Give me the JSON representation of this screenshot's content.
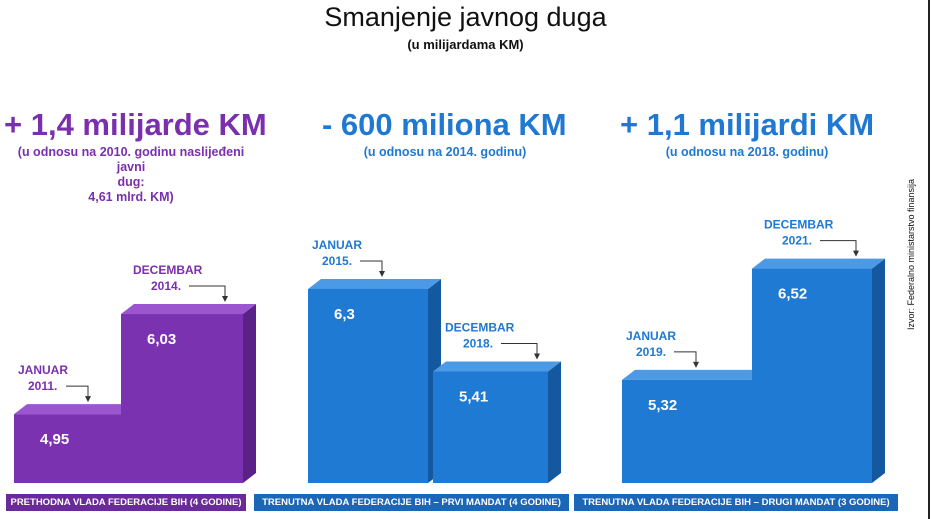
{
  "title": "Smanjenje javnog duga",
  "subtitle": "(u milijardama KM)",
  "source": "Izvor: Federalno ministarstvo finansija",
  "colors": {
    "purple": "#7a2fad",
    "blue": "#1f78d1"
  },
  "panels": [
    {
      "headline": "+ 1,4 milijarde KM",
      "note_lines": [
        "(u odnosu na 2010. godinu naslijeđeni javni",
        "dug:",
        "4,61 mlrd. KM)"
      ],
      "footer": "PRETHODNA VLADA FEDERACIJE BIH (4 GODINE)",
      "color": "purple"
    },
    {
      "headline": "- 600 miliona KM",
      "note_lines": [
        "(u odnosu na 2014. godinu)"
      ],
      "footer": "TRENUTNA VLADA FEDERACIJE BIH – PRVI MANDAT (4 GODINE)",
      "color": "blue"
    },
    {
      "headline": "+ 1,1 milijardi KM",
      "note_lines": [
        "(u odnosu na 2018. godinu)"
      ],
      "footer": "TRENUTNA VLADA FEDERACIJE BIH – DRUGI MANDAT (3 GODINE)",
      "color": "blue"
    }
  ],
  "chart_data": {
    "type": "bar",
    "title": "Smanjenje javnog duga",
    "ylabel": "(u milijardama KM)",
    "series": [
      {
        "name": "PRETHODNA VLADA FEDERACIJE BIH (4 GODINE)",
        "categories": [
          "JANUAR 2011.",
          "DECEMBAR 2014."
        ],
        "values": [
          4.95,
          6.03
        ],
        "labels": [
          "4,95",
          "6,03"
        ]
      },
      {
        "name": "TRENUTNA VLADA FEDERACIJE BIH – PRVI MANDAT (4 GODINE)",
        "categories": [
          "JANUAR 2015.",
          "DECEMBAR 2018."
        ],
        "values": [
          6.3,
          5.41
        ],
        "labels": [
          "6,3",
          "5,41"
        ]
      },
      {
        "name": "TRENUTNA VLADA FEDERACIJE BIH – DRUGI MANDAT (3 GODINE)",
        "categories": [
          "JANUAR 2019.",
          "DECEMBAR 2021."
        ],
        "values": [
          5.32,
          6.52
        ],
        "labels": [
          "5,32",
          "6,52"
        ]
      }
    ],
    "bar_period_labels": [
      [
        "JANUAR",
        "2011."
      ],
      [
        "DECEMBAR",
        "2014."
      ],
      [
        "JANUAR",
        "2015."
      ],
      [
        "DECEMBAR",
        "2018."
      ],
      [
        "JANUAR",
        "2019."
      ],
      [
        "DECEMBAR",
        "2021."
      ]
    ]
  }
}
